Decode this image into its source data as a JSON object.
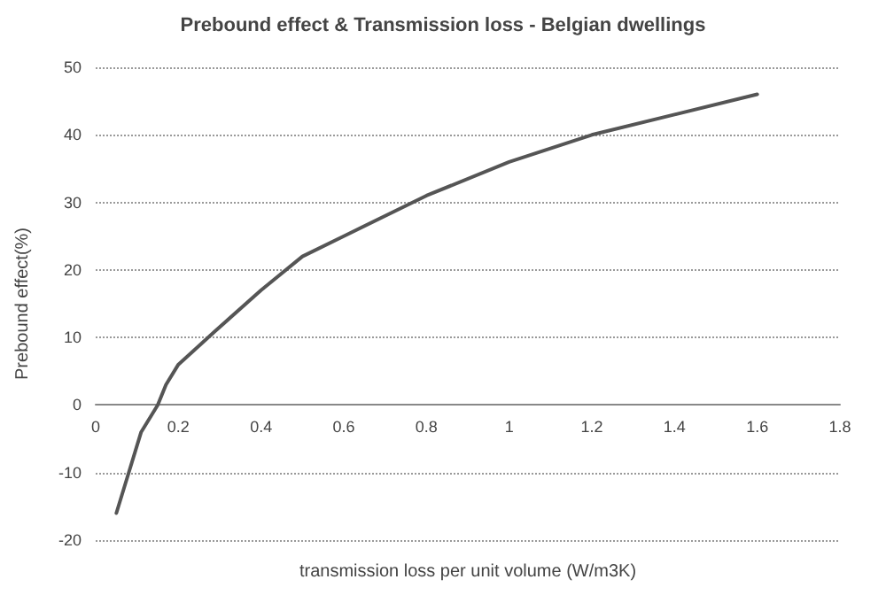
{
  "chart_data": {
    "type": "line",
    "title": "Prebound effect & Transmission loss - Belgian dwellings",
    "xlabel": "transmission loss per unit volume (W/m3K)",
    "ylabel": "Prebound effect(%)",
    "x": [
      0.05,
      0.08,
      0.11,
      0.15,
      0.17,
      0.2,
      0.29,
      0.4,
      0.5,
      0.6,
      0.8,
      1,
      1.2,
      1.4,
      1.6
    ],
    "series": [
      {
        "color": "#555555",
        "values": [
          -16,
          -10,
          -4,
          0,
          3,
          6,
          11,
          17,
          22,
          25,
          31,
          36,
          40,
          43,
          46
        ]
      }
    ],
    "xlim": [
      0,
      1.8
    ],
    "xticks": [
      0,
      0.2,
      0.4,
      0.6,
      0.8,
      1,
      1.2,
      1.4,
      1.6,
      1.8
    ],
    "ylim": [
      -20,
      50
    ],
    "yticks": [
      -20,
      -10,
      0,
      10,
      20,
      30,
      40,
      50
    ],
    "grid": "y",
    "marker": "none",
    "line_style": "solid"
  }
}
